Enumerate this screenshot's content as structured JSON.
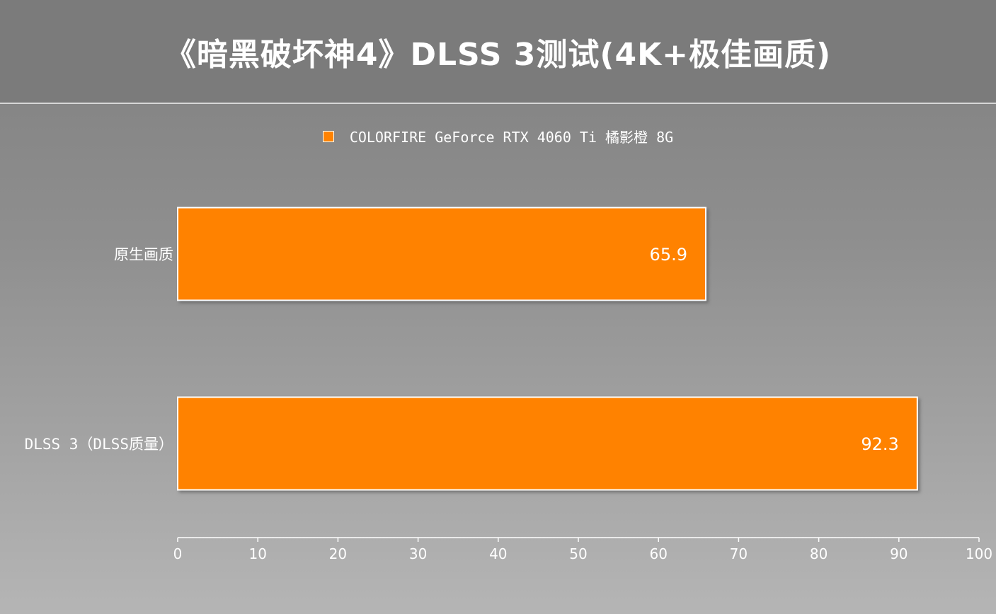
{
  "header": {
    "title": "《暗黑破坏神4》DLSS 3测试(4K+极佳画质)"
  },
  "colors": {
    "bar": "#ff8200",
    "bar_border": "#ffffff",
    "text": "#ffffff",
    "header_bg": "#7b7b7b"
  },
  "chart_data": {
    "type": "bar",
    "orientation": "horizontal",
    "title": "《暗黑破坏神4》DLSS 3测试(4K+极佳画质)",
    "categories": [
      "原生画质",
      "DLSS 3（DLSS质量）"
    ],
    "series": [
      {
        "name": "COLORFIRE GeForce RTX 4060 Ti 橘影橙 8G",
        "values": [
          65.9,
          92.3
        ]
      }
    ],
    "xlim": [
      0,
      100
    ],
    "xticks": [
      0,
      10,
      20,
      30,
      40,
      50,
      60,
      70,
      80,
      90,
      100
    ],
    "xlabel": "",
    "ylabel": "",
    "grid": false,
    "legend": "top-center",
    "data_labels": true
  }
}
